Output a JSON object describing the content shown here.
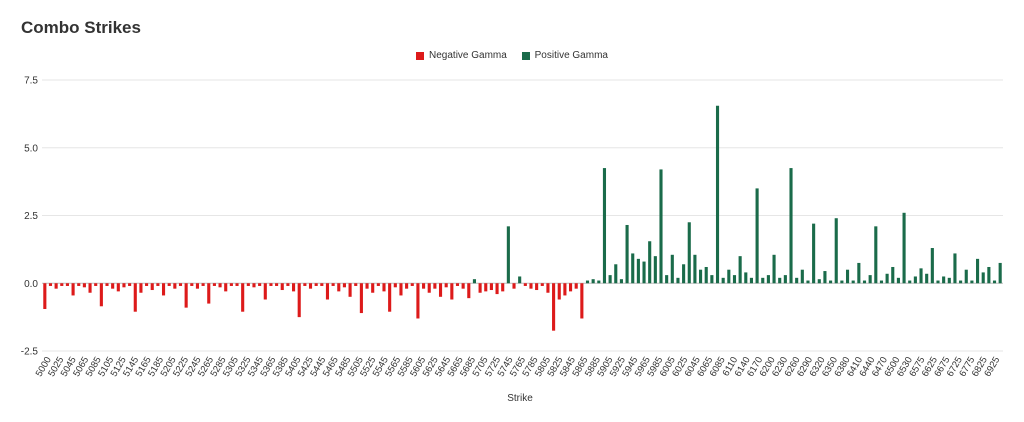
{
  "title": "Combo Strikes",
  "colors": {
    "negative": "#dd1a1a",
    "positive": "#1a6b4a",
    "grid": "#e6e6e6",
    "zero": "#bdbdbd"
  },
  "chart_data": {
    "type": "bar",
    "title": "Combo Strikes",
    "xlabel": "Strike",
    "ylabel": "",
    "ylim": [
      -2.5,
      7.5
    ],
    "yticks": [
      "7.5",
      "5.0",
      "2.5",
      "0.0",
      "-2.5"
    ],
    "grid": true,
    "legend_position": "top-center",
    "series": [
      {
        "name": "Negative Gamma",
        "color": "#dd1a1a"
      },
      {
        "name": "Positive Gamma",
        "color": "#1a6b4a"
      }
    ],
    "xticks": [
      "5000",
      "5025",
      "5045",
      "5065",
      "5085",
      "5105",
      "5125",
      "5145",
      "5165",
      "5185",
      "5205",
      "5225",
      "5245",
      "5265",
      "5285",
      "5305",
      "5325",
      "5345",
      "5365",
      "5385",
      "5405",
      "5425",
      "5445",
      "5465",
      "5485",
      "5505",
      "5525",
      "5545",
      "5565",
      "5585",
      "5605",
      "5625",
      "5645",
      "5665",
      "5685",
      "5705",
      "5725",
      "5745",
      "5765",
      "5785",
      "5805",
      "5825",
      "5845",
      "5865",
      "5885",
      "5905",
      "5925",
      "5945",
      "5965",
      "5985",
      "6005",
      "6025",
      "6045",
      "6065",
      "6085",
      "6110",
      "6140",
      "6170",
      "6200",
      "6230",
      "6260",
      "6290",
      "6320",
      "6350",
      "6380",
      "6410",
      "6440",
      "6470",
      "6500",
      "6530",
      "6575",
      "6625",
      "6675",
      "6725",
      "6775",
      "6825",
      "6925"
    ],
    "bars": [
      [
        5000,
        -0.95
      ],
      [
        5025,
        -0.1
      ],
      [
        5045,
        -0.2
      ],
      [
        5065,
        -0.1
      ],
      [
        5085,
        -0.1
      ],
      [
        5105,
        -0.45
      ],
      [
        5125,
        -0.1
      ],
      [
        5145,
        -0.15
      ],
      [
        5165,
        -0.35
      ],
      [
        5185,
        -0.1
      ],
      [
        5205,
        -0.85
      ],
      [
        5225,
        -0.1
      ],
      [
        5245,
        -0.2
      ],
      [
        5265,
        -0.3
      ],
      [
        5285,
        -0.15
      ],
      [
        5295,
        -0.1
      ],
      [
        5305,
        -1.05
      ],
      [
        5315,
        -0.35
      ],
      [
        5325,
        -0.1
      ],
      [
        5335,
        -0.25
      ],
      [
        5345,
        -0.1
      ],
      [
        5355,
        -0.45
      ],
      [
        5365,
        -0.1
      ],
      [
        5385,
        -0.2
      ],
      [
        5395,
        -0.1
      ],
      [
        5405,
        -0.9
      ],
      [
        5415,
        -0.1
      ],
      [
        5425,
        -0.2
      ],
      [
        5435,
        -0.1
      ],
      [
        5445,
        -0.75
      ],
      [
        5455,
        -0.1
      ],
      [
        5465,
        -0.15
      ],
      [
        5475,
        -0.3
      ],
      [
        5485,
        -0.1
      ],
      [
        5495,
        -0.1
      ],
      [
        5505,
        -1.05
      ],
      [
        5515,
        -0.1
      ],
      [
        5525,
        -0.15
      ],
      [
        5535,
        -0.1
      ],
      [
        5545,
        -0.6
      ],
      [
        5555,
        -0.1
      ],
      [
        5565,
        -0.1
      ],
      [
        5575,
        -0.25
      ],
      [
        5585,
        -0.1
      ],
      [
        5595,
        -0.3
      ],
      [
        5605,
        -1.25
      ],
      [
        5615,
        -0.1
      ],
      [
        5625,
        -0.2
      ],
      [
        5635,
        -0.1
      ],
      [
        5645,
        -0.1
      ],
      [
        5655,
        -0.6
      ],
      [
        5665,
        -0.1
      ],
      [
        5675,
        -0.3
      ],
      [
        5685,
        -0.15
      ],
      [
        5695,
        -0.5
      ],
      [
        5705,
        -0.1
      ],
      [
        5715,
        -1.1
      ],
      [
        5725,
        -0.2
      ],
      [
        5735,
        -0.35
      ],
      [
        5745,
        -0.1
      ],
      [
        5755,
        -0.3
      ],
      [
        5765,
        -1.05
      ],
      [
        5775,
        -0.15
      ],
      [
        5785,
        -0.45
      ],
      [
        5795,
        -0.2
      ],
      [
        5805,
        -0.1
      ],
      [
        5815,
        -1.3
      ],
      [
        5825,
        -0.2
      ],
      [
        5835,
        -0.35
      ],
      [
        5845,
        -0.2
      ],
      [
        5855,
        -0.5
      ],
      [
        5865,
        -0.15
      ],
      [
        5875,
        -0.6
      ],
      [
        5885,
        -0.1
      ],
      [
        5895,
        -0.2
      ],
      [
        5905,
        -0.55
      ],
      [
        5910,
        0.15
      ],
      [
        5915,
        -0.35
      ],
      [
        5920,
        -0.3
      ],
      [
        5925,
        -0.25
      ],
      [
        5930,
        -0.4
      ],
      [
        5935,
        -0.3
      ],
      [
        5940,
        2.1
      ],
      [
        5945,
        -0.2
      ],
      [
        5950,
        0.25
      ],
      [
        5955,
        -0.1
      ],
      [
        5960,
        -0.2
      ],
      [
        5965,
        -0.25
      ],
      [
        5970,
        -0.1
      ],
      [
        5975,
        -0.35
      ],
      [
        5980,
        -1.75
      ],
      [
        5985,
        -0.6
      ],
      [
        5990,
        -0.45
      ],
      [
        5995,
        -0.3
      ],
      [
        6000,
        -0.2
      ],
      [
        6003,
        -1.3
      ],
      [
        6006,
        0.1
      ],
      [
        6010,
        0.15
      ],
      [
        6015,
        0.1
      ],
      [
        6020,
        4.25
      ],
      [
        6023,
        0.3
      ],
      [
        6026,
        0.7
      ],
      [
        6030,
        0.15
      ],
      [
        6033,
        2.15
      ],
      [
        6036,
        1.1
      ],
      [
        6039,
        0.9
      ],
      [
        6042,
        0.8
      ],
      [
        6045,
        1.55
      ],
      [
        6048,
        1.0
      ],
      [
        6051,
        4.2
      ],
      [
        6054,
        0.3
      ],
      [
        6057,
        1.05
      ],
      [
        6060,
        0.2
      ],
      [
        6063,
        0.7
      ],
      [
        6066,
        2.25
      ],
      [
        6069,
        1.05
      ],
      [
        6072,
        0.5
      ],
      [
        6075,
        0.6
      ],
      [
        6078,
        0.3
      ],
      [
        6081,
        6.55
      ],
      [
        6084,
        0.2
      ],
      [
        6087,
        0.5
      ],
      [
        6090,
        0.3
      ],
      [
        6093,
        1.0
      ],
      [
        6096,
        0.4
      ],
      [
        6099,
        0.2
      ],
      [
        6102,
        3.5
      ],
      [
        6105,
        0.2
      ],
      [
        6108,
        0.3
      ],
      [
        6111,
        1.05
      ],
      [
        6114,
        0.2
      ],
      [
        6117,
        0.3
      ],
      [
        6120,
        4.25
      ],
      [
        6123,
        0.2
      ],
      [
        6126,
        0.5
      ],
      [
        6129,
        0.1
      ],
      [
        6132,
        2.2
      ],
      [
        6135,
        0.15
      ],
      [
        6138,
        0.45
      ],
      [
        6141,
        0.1
      ],
      [
        6144,
        2.4
      ],
      [
        6147,
        0.1
      ],
      [
        6150,
        0.5
      ],
      [
        6153,
        0.1
      ],
      [
        6156,
        0.75
      ],
      [
        6159,
        0.1
      ],
      [
        6162,
        0.3
      ],
      [
        6165,
        2.1
      ],
      [
        6168,
        0.1
      ],
      [
        6171,
        0.35
      ],
      [
        6174,
        0.6
      ],
      [
        6177,
        0.2
      ],
      [
        6180,
        2.6
      ],
      [
        6183,
        0.1
      ],
      [
        6186,
        0.25
      ],
      [
        6189,
        0.55
      ],
      [
        6192,
        0.35
      ],
      [
        6195,
        1.3
      ],
      [
        6198,
        0.1
      ],
      [
        6201,
        0.25
      ],
      [
        6204,
        0.2
      ],
      [
        6207,
        1.1
      ],
      [
        6210,
        0.1
      ],
      [
        6213,
        0.5
      ],
      [
        6216,
        0.1
      ],
      [
        6219,
        0.9
      ],
      [
        6222,
        0.4
      ],
      [
        6225,
        0.6
      ],
      [
        6228,
        0.1
      ],
      [
        6231,
        0.75
      ]
    ]
  }
}
